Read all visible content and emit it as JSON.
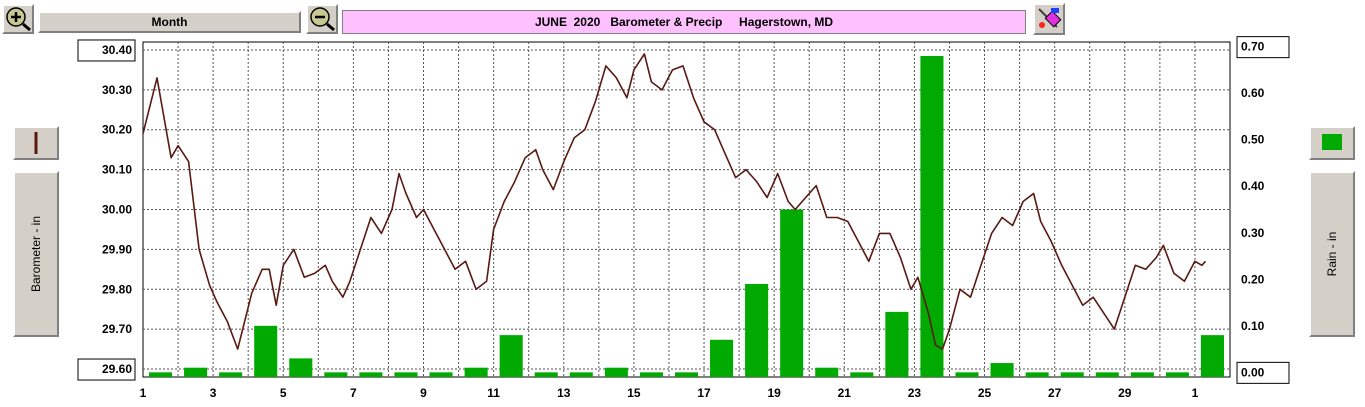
{
  "toolbar": {
    "period_label": "Month",
    "title": "JUNE  2020   Barometer & Precip     Hagerstown, MD",
    "zoom_in_icon": "zoom-in-icon",
    "zoom_out_icon": "zoom-out-icon",
    "tools_icon": "paint-tools-icon"
  },
  "side": {
    "left_axis_label": "Barometer - in",
    "right_axis_label": "Rain - in",
    "baro_color": "#5a1a12",
    "rain_color": "#00aa00"
  },
  "chart_data": {
    "type": "bar+line",
    "title": "JUNE  2020   Barometer & Precip     Hagerstown, MD",
    "x_tick_labels": [
      "1",
      "3",
      "5",
      "7",
      "9",
      "11",
      "13",
      "15",
      "17",
      "19",
      "21",
      "23",
      "25",
      "27",
      "29",
      "1"
    ],
    "left_axis": {
      "label": "Barometer - in",
      "range": [
        29.58,
        30.42
      ],
      "ticks": [
        "30.40",
        "30.30",
        "30.20",
        "30.10",
        "30.00",
        "29.90",
        "29.80",
        "29.70",
        "29.60"
      ]
    },
    "right_axis": {
      "label": "Rain - in",
      "range": [
        -0.01,
        0.71
      ],
      "ticks": [
        "0.70",
        "0.60",
        "0.50",
        "0.40",
        "0.30",
        "0.20",
        "0.10",
        "0.00"
      ]
    },
    "grid": true,
    "series": [
      {
        "name": "Rain - in",
        "kind": "bar",
        "color": "#00aa00",
        "days": [
          1,
          2,
          3,
          4,
          5,
          6,
          7,
          8,
          9,
          10,
          11,
          12,
          13,
          14,
          15,
          16,
          17,
          18,
          19,
          20,
          21,
          22,
          23,
          24,
          25,
          26,
          27,
          28,
          29,
          30,
          31
        ],
        "values": [
          0.0,
          0.01,
          0.0,
          0.1,
          0.03,
          0.0,
          0.0,
          0.0,
          0.0,
          0.01,
          0.08,
          0.0,
          0.0,
          0.01,
          0.0,
          0.0,
          0.07,
          0.19,
          0.35,
          0.01,
          0.0,
          0.13,
          0.68,
          0.0,
          0.02,
          0.0,
          0.0,
          0.0,
          0.0,
          0.0,
          0.08
        ]
      },
      {
        "name": "Barometer - in",
        "kind": "line",
        "color": "#5a1a12",
        "x": [
          1.0,
          1.4,
          1.8,
          2.0,
          2.3,
          2.6,
          2.9,
          3.1,
          3.4,
          3.7,
          3.9,
          4.1,
          4.4,
          4.6,
          4.8,
          5.0,
          5.3,
          5.6,
          5.9,
          6.2,
          6.4,
          6.7,
          6.9,
          7.2,
          7.5,
          7.8,
          8.1,
          8.3,
          8.5,
          8.8,
          9.0,
          9.3,
          9.6,
          9.9,
          10.2,
          10.5,
          10.8,
          11.0,
          11.3,
          11.6,
          11.9,
          12.2,
          12.4,
          12.7,
          13.0,
          13.3,
          13.6,
          13.9,
          14.2,
          14.5,
          14.8,
          15.0,
          15.3,
          15.5,
          15.8,
          16.1,
          16.4,
          16.7,
          17.0,
          17.3,
          17.6,
          17.9,
          18.2,
          18.5,
          18.8,
          19.1,
          19.4,
          19.6,
          19.9,
          20.2,
          20.5,
          20.8,
          21.1,
          21.4,
          21.7,
          22.0,
          22.3,
          22.6,
          22.9,
          23.1,
          23.4,
          23.6,
          23.8,
          24.0,
          24.3,
          24.6,
          24.9,
          25.2,
          25.5,
          25.8,
          26.1,
          26.4,
          26.6,
          26.9,
          27.2,
          27.5,
          27.8,
          28.1,
          28.4,
          28.7,
          29.0,
          29.3,
          29.6,
          29.9,
          30.1,
          30.4,
          30.7,
          31.0,
          31.2,
          31.3
        ],
        "values": [
          30.19,
          30.33,
          30.13,
          30.16,
          30.12,
          29.9,
          29.81,
          29.77,
          29.72,
          29.65,
          29.72,
          29.79,
          29.85,
          29.85,
          29.76,
          29.86,
          29.9,
          29.83,
          29.84,
          29.86,
          29.82,
          29.78,
          29.82,
          29.9,
          29.98,
          29.94,
          30.0,
          30.09,
          30.04,
          29.98,
          30.0,
          29.95,
          29.9,
          29.85,
          29.87,
          29.8,
          29.82,
          29.95,
          30.02,
          30.07,
          30.13,
          30.15,
          30.1,
          30.05,
          30.12,
          30.18,
          30.2,
          30.27,
          30.36,
          30.33,
          30.28,
          30.35,
          30.39,
          30.32,
          30.3,
          30.35,
          30.36,
          30.28,
          30.22,
          30.2,
          30.14,
          30.08,
          30.1,
          30.07,
          30.03,
          30.09,
          30.02,
          30.0,
          30.03,
          30.06,
          29.98,
          29.98,
          29.97,
          29.92,
          29.87,
          29.94,
          29.94,
          29.88,
          29.8,
          29.83,
          29.74,
          29.66,
          29.65,
          29.7,
          29.8,
          29.78,
          29.86,
          29.94,
          29.98,
          29.96,
          30.02,
          30.04,
          29.97,
          29.92,
          29.86,
          29.81,
          29.76,
          29.78,
          29.74,
          29.7,
          29.78,
          29.86,
          29.85,
          29.88,
          29.91,
          29.84,
          29.82,
          29.87,
          29.86,
          29.87
        ]
      }
    ]
  }
}
